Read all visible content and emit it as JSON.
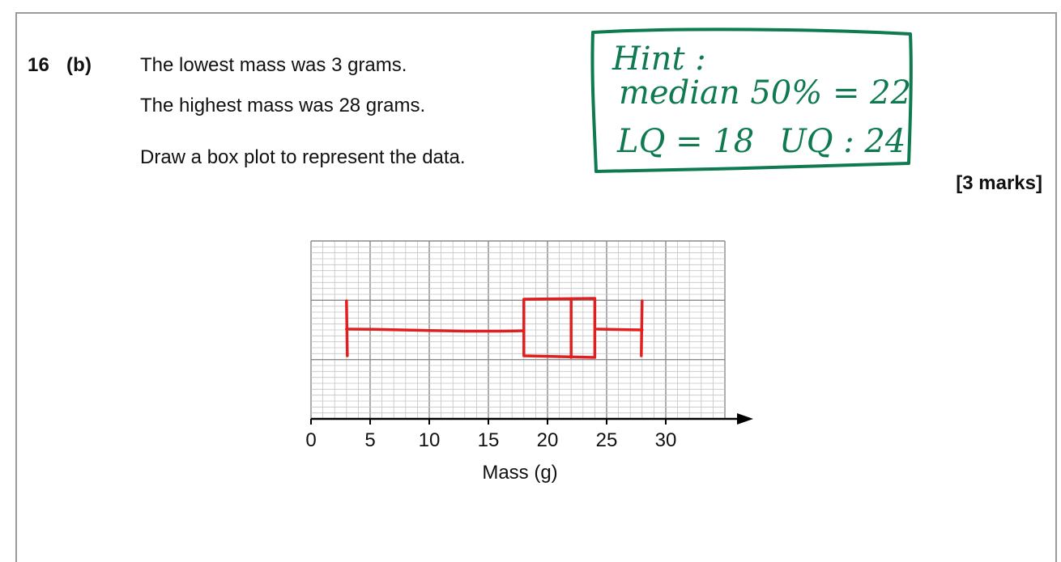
{
  "question": {
    "number": "16",
    "part": "(b)",
    "line1": "The lowest mass was 3 grams.",
    "line2": "The highest mass was 28 grams.",
    "instruction": "Draw a box plot to represent the data.",
    "marks": "[3 marks]"
  },
  "hint": {
    "title": "Hint :",
    "median": "median 50% = 22",
    "lq": "LQ = 18",
    "uq": "UQ : 24",
    "ink_color": "#0f7a50"
  },
  "chart_data": {
    "type": "box",
    "xlabel": "Mass (g)",
    "xlim": [
      0,
      35
    ],
    "ticks": [
      0,
      5,
      10,
      15,
      20,
      25,
      30
    ],
    "tick_labels": [
      "0",
      "5",
      "10",
      "15",
      "20",
      "25",
      "30"
    ],
    "box": {
      "min": 3,
      "q1": 18,
      "median": 22,
      "q3": 24,
      "max": 28
    },
    "grid": true,
    "pen_color": "#e02020"
  }
}
